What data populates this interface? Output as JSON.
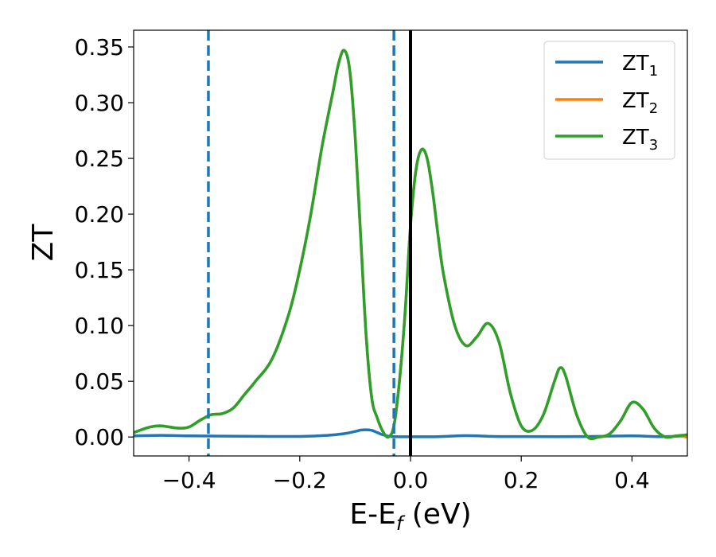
{
  "chart_data": {
    "type": "line",
    "xlabel": {
      "main": "E-E",
      "sub": "f",
      "unit": " (eV)"
    },
    "ylabel": "ZT",
    "xlim": [
      -0.5,
      0.5
    ],
    "ylim": [
      -0.017,
      0.365
    ],
    "x_ticks": [
      -0.4,
      -0.2,
      0.0,
      0.2,
      0.4
    ],
    "x_tick_labels": [
      "−0.4",
      "−0.2",
      "0.0",
      "0.2",
      "0.4"
    ],
    "y_ticks": [
      0.0,
      0.05,
      0.1,
      0.15,
      0.2,
      0.25,
      0.3,
      0.35
    ],
    "y_tick_labels": [
      "0.00",
      "0.05",
      "0.10",
      "0.15",
      "0.20",
      "0.25",
      "0.30",
      "0.35"
    ],
    "grid": false,
    "legend_position": "top-right",
    "series": [
      {
        "name": "ZT",
        "sub": "1",
        "color": "#1f77b4",
        "x": [
          -0.5,
          -0.45,
          -0.4,
          -0.3,
          -0.2,
          -0.15,
          -0.12,
          -0.1,
          -0.09,
          -0.08,
          -0.07,
          -0.06,
          -0.05,
          -0.04,
          -0.03,
          0.0,
          0.05,
          0.1,
          0.15,
          0.2,
          0.3,
          0.4,
          0.45,
          0.5
        ],
        "y": [
          0.001,
          0.0015,
          0.001,
          0.0007,
          0.0005,
          0.0015,
          0.003,
          0.005,
          0.0062,
          0.0065,
          0.006,
          0.004,
          0.002,
          0.0008,
          0.0003,
          0.0002,
          0.0003,
          0.0012,
          0.0005,
          0.0004,
          0.0004,
          0.001,
          0.0003,
          0.001
        ]
      },
      {
        "name": "ZT",
        "sub": "2",
        "color": "#ff7f0e",
        "x": [
          -0.5,
          -0.47,
          -0.45,
          -0.42,
          -0.4,
          -0.38,
          -0.36,
          -0.34,
          -0.32,
          -0.3,
          -0.28,
          -0.25,
          -0.22,
          -0.2,
          -0.18,
          -0.16,
          -0.14,
          -0.13,
          -0.12,
          -0.11,
          -0.1,
          -0.09,
          -0.08,
          -0.07,
          -0.06,
          -0.05,
          -0.04,
          -0.03,
          -0.02,
          -0.01,
          0.0,
          0.01,
          0.02,
          0.03,
          0.04,
          0.05,
          0.06,
          0.08,
          0.1,
          0.12,
          0.14,
          0.16,
          0.18,
          0.2,
          0.22,
          0.24,
          0.26,
          0.27,
          0.28,
          0.3,
          0.32,
          0.34,
          0.36,
          0.38,
          0.4,
          0.42,
          0.44,
          0.46,
          0.48,
          0.5
        ],
        "y": [
          0.004,
          0.009,
          0.01,
          0.008,
          0.009,
          0.015,
          0.02,
          0.021,
          0.026,
          0.038,
          0.05,
          0.07,
          0.11,
          0.15,
          0.2,
          0.26,
          0.31,
          0.335,
          0.347,
          0.33,
          0.27,
          0.18,
          0.09,
          0.035,
          0.017,
          0.005,
          0.0,
          0.01,
          0.05,
          0.11,
          0.19,
          0.24,
          0.258,
          0.25,
          0.22,
          0.18,
          0.145,
          0.1,
          0.082,
          0.09,
          0.102,
          0.085,
          0.04,
          0.01,
          0.006,
          0.02,
          0.05,
          0.062,
          0.055,
          0.02,
          0.0,
          0.0,
          0.003,
          0.015,
          0.031,
          0.025,
          0.008,
          0.0,
          0.001,
          0.0
        ]
      },
      {
        "name": "ZT",
        "sub": "3",
        "color": "#2ca02c",
        "x": [
          -0.5,
          -0.47,
          -0.45,
          -0.42,
          -0.4,
          -0.38,
          -0.36,
          -0.34,
          -0.32,
          -0.3,
          -0.28,
          -0.25,
          -0.22,
          -0.2,
          -0.18,
          -0.16,
          -0.14,
          -0.13,
          -0.12,
          -0.11,
          -0.1,
          -0.09,
          -0.08,
          -0.07,
          -0.06,
          -0.05,
          -0.04,
          -0.03,
          -0.02,
          -0.01,
          0.0,
          0.01,
          0.02,
          0.03,
          0.04,
          0.05,
          0.06,
          0.08,
          0.1,
          0.12,
          0.14,
          0.16,
          0.18,
          0.2,
          0.22,
          0.24,
          0.26,
          0.27,
          0.28,
          0.3,
          0.32,
          0.34,
          0.36,
          0.38,
          0.4,
          0.42,
          0.44,
          0.46,
          0.48,
          0.5
        ],
        "y": [
          0.004,
          0.009,
          0.01,
          0.008,
          0.009,
          0.015,
          0.02,
          0.021,
          0.026,
          0.038,
          0.05,
          0.07,
          0.11,
          0.15,
          0.2,
          0.26,
          0.31,
          0.335,
          0.347,
          0.33,
          0.27,
          0.18,
          0.09,
          0.035,
          0.017,
          0.005,
          0.0,
          0.01,
          0.05,
          0.11,
          0.19,
          0.24,
          0.258,
          0.25,
          0.22,
          0.18,
          0.145,
          0.1,
          0.082,
          0.09,
          0.102,
          0.085,
          0.04,
          0.01,
          0.006,
          0.02,
          0.05,
          0.062,
          0.055,
          0.02,
          0.0,
          0.0,
          0.003,
          0.015,
          0.031,
          0.025,
          0.008,
          0.0,
          0.001,
          0.002
        ]
      }
    ],
    "reference_lines": [
      {
        "x": -0.365,
        "style": "dashed",
        "color": "#1f77b4"
      },
      {
        "x": -0.03,
        "style": "dashed",
        "color": "#1f77b4"
      },
      {
        "x": 0.0,
        "style": "solid",
        "color": "#000000"
      }
    ]
  }
}
